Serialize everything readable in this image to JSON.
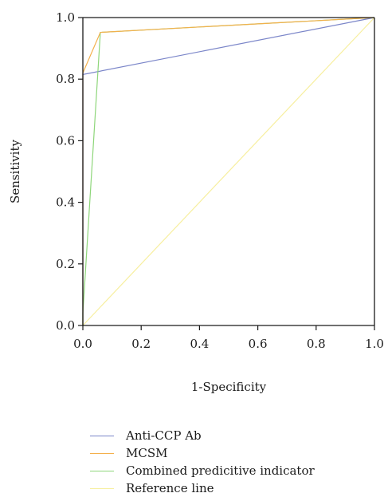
{
  "chart_data": {
    "type": "line",
    "title": "",
    "xlabel": "1-Specificity",
    "ylabel": "Sensitivity",
    "xlim": [
      0.0,
      1.0
    ],
    "ylim": [
      0.0,
      1.0
    ],
    "x_ticks": [
      "0.0",
      "0.2",
      "0.4",
      "0.6",
      "0.8",
      "1.0"
    ],
    "y_ticks": [
      "0.0",
      "0.2",
      "0.4",
      "0.6",
      "0.8",
      "1.0"
    ],
    "grid": false,
    "legend_position": "bottom",
    "series": [
      {
        "name": "Anti-CCP Ab",
        "color": "#7b86c9",
        "points": [
          [
            0.0,
            0.0
          ],
          [
            0.0,
            0.815
          ],
          [
            1.0,
            1.0
          ]
        ]
      },
      {
        "name": "MCSM",
        "color": "#f4b04c",
        "points": [
          [
            0.0,
            0.0
          ],
          [
            0.0,
            0.82
          ],
          [
            0.06,
            0.952
          ],
          [
            1.0,
            1.0
          ]
        ]
      },
      {
        "name": "Combined predicitive indicator",
        "color": "#8ed67a",
        "points": [
          [
            0.0,
            0.0
          ],
          [
            0.0,
            0.04
          ],
          [
            0.06,
            0.952
          ],
          [
            1.0,
            1.0
          ]
        ]
      },
      {
        "name": "Reference line",
        "color": "#f7ef9f",
        "points": [
          [
            0.0,
            0.0
          ],
          [
            1.0,
            1.0
          ]
        ]
      }
    ]
  }
}
